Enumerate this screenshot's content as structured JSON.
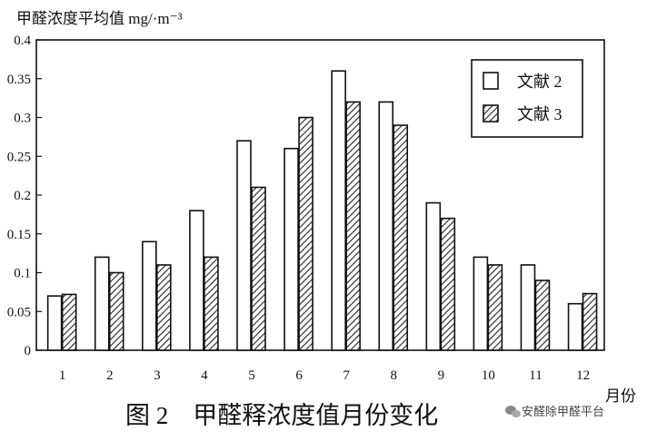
{
  "chart_data": {
    "type": "bar",
    "ylabel": "甲醛浓度平均值 mg/·m⁻³",
    "xlabel": "月份",
    "caption": "图 2　甲醛释浓度值月份变化",
    "categories": [
      "1",
      "2",
      "3",
      "4",
      "5",
      "6",
      "7",
      "8",
      "9",
      "10",
      "11",
      "12"
    ],
    "yticks": [
      "0",
      "0.05",
      "0.1",
      "0.15",
      "0.2",
      "0.25",
      "0.3",
      "0.35",
      "0.4"
    ],
    "ylim": [
      0,
      0.4
    ],
    "series": [
      {
        "name": "文献 2",
        "pattern": "plain",
        "values": [
          0.07,
          0.12,
          0.14,
          0.18,
          0.27,
          0.26,
          0.36,
          0.32,
          0.19,
          0.12,
          0.11,
          0.06
        ]
      },
      {
        "name": "文献 3",
        "pattern": "hatched",
        "values": [
          0.072,
          0.1,
          0.11,
          0.12,
          0.21,
          0.3,
          0.32,
          0.29,
          0.17,
          0.11,
          0.09,
          0.073
        ]
      }
    ],
    "legend_position": "top-right",
    "grid": false
  },
  "watermark": {
    "text": "安醛除甲醛平台",
    "icon": "wechat-icon"
  },
  "colors": {
    "axis": "#111111",
    "bar_fill": "#ffffff",
    "hatch": "#222222"
  }
}
